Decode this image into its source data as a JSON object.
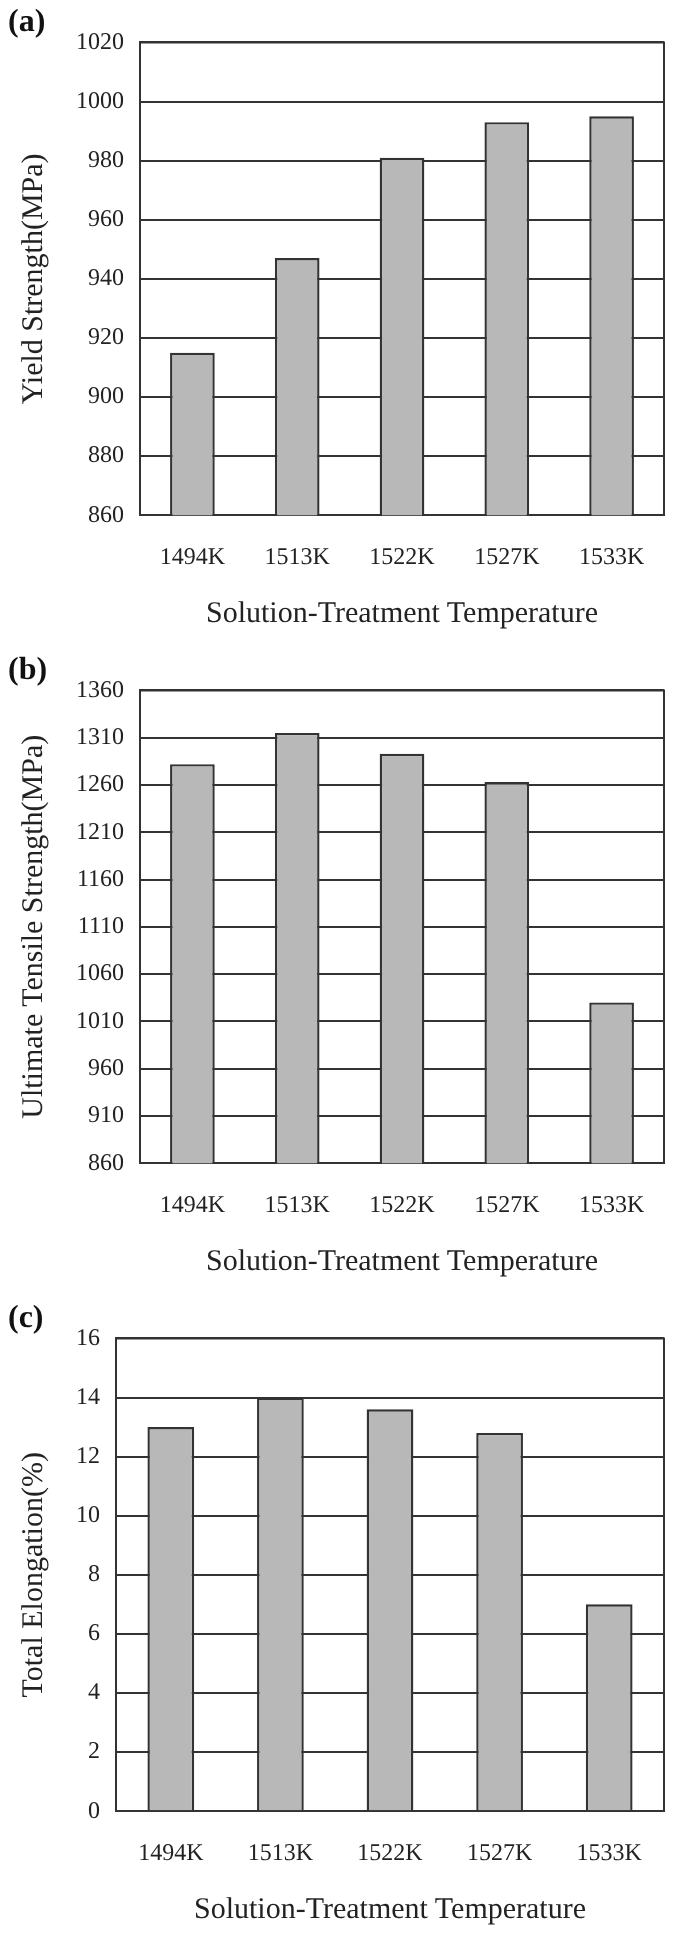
{
  "chart_data": [
    {
      "type": "bar",
      "title": "(a)",
      "xlabel": "Solution-Treatment Temperature",
      "ylabel": "Yield Strength(MPa)",
      "categories": [
        "1494K",
        "1513K",
        "1522K",
        "1527K",
        "1533K"
      ],
      "values": [
        915,
        947,
        981,
        993,
        995
      ],
      "color": "#b8b8b8",
      "ylim": [
        860,
        1020
      ],
      "yticks": [
        860,
        880,
        900,
        920,
        940,
        960,
        980,
        1000,
        1020
      ],
      "grid": "y",
      "legend": false
    },
    {
      "type": "bar",
      "title": "(b)",
      "xlabel": "Solution-Treatment Temperature",
      "ylabel": "Ultimate Tensile Strength(MPa)",
      "categories": [
        "1494K",
        "1513K",
        "1522K",
        "1527K",
        "1533K"
      ],
      "values": [
        1282,
        1315,
        1293,
        1263,
        1030
      ],
      "color": "#b8b8b8",
      "ylim": [
        860,
        1360
      ],
      "yticks": [
        860,
        910,
        960,
        1010,
        1060,
        1110,
        1160,
        1210,
        1260,
        1310,
        1360
      ],
      "grid": "y",
      "legend": false
    },
    {
      "type": "bar",
      "title": "(c)",
      "xlabel": "Solution-Treatment Temperature",
      "ylabel": "Total Elongation(%)",
      "categories": [
        "1494K",
        "1513K",
        "1522K",
        "1527K",
        "1533K"
      ],
      "values": [
        13,
        14,
        13.6,
        12.8,
        7
      ],
      "color": "#b8b8b8",
      "ylim": [
        0,
        16
      ],
      "yticks": [
        0,
        2,
        4,
        6,
        8,
        10,
        12,
        14,
        16
      ],
      "grid": "y",
      "legend": false
    }
  ]
}
